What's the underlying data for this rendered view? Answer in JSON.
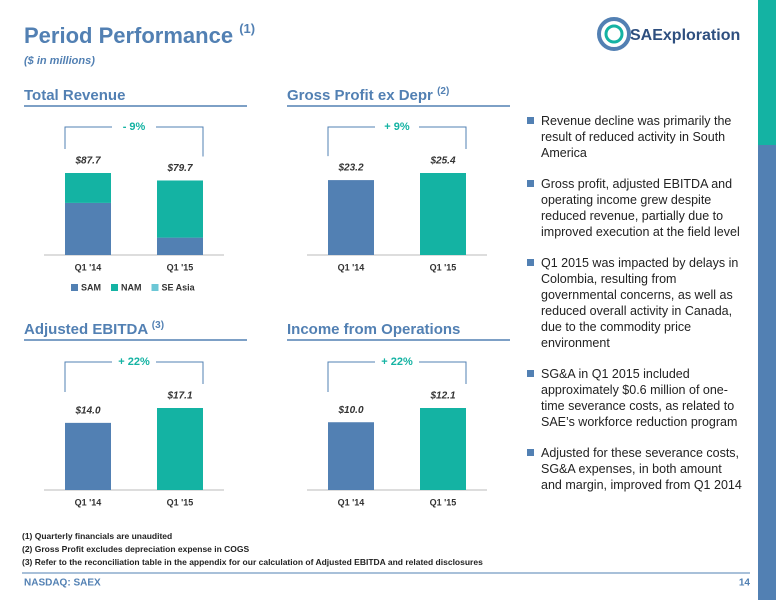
{
  "header": {
    "title": "Period Performance",
    "title_note": "(1)",
    "subtitle": "($ in millions)",
    "logo": "SAExploration"
  },
  "chart_data": [
    {
      "type": "stacked-bar",
      "title": "Total Revenue",
      "categories": [
        "Q1 '14",
        "Q1 '15"
      ],
      "series": [
        {
          "name": "SAM",
          "color": "#5280b3",
          "values": [
            55.7,
            18.6
          ]
        },
        {
          "name": "NAM",
          "color": "#14b3a3",
          "values": [
            32.0,
            61.1
          ]
        },
        {
          "name": "SE Asia",
          "color": "#6cc7d6",
          "values": [
            0,
            0
          ]
        }
      ],
      "totals": [
        87.7,
        79.7
      ],
      "total_labels": [
        "$87.7",
        "$79.7"
      ],
      "annotation": "- 9%"
    },
    {
      "type": "bar",
      "title": "Gross Profit ex Depr",
      "title_note": "(2)",
      "categories": [
        "Q1 '14",
        "Q1 '15"
      ],
      "values": [
        23.2,
        25.4
      ],
      "value_labels": [
        "$23.2",
        "$25.4"
      ],
      "colors": [
        "#5280b3",
        "#14b3a3"
      ],
      "annotation": "+ 9%"
    },
    {
      "type": "bar",
      "title": "Adjusted EBITDA",
      "title_note": "(3)",
      "categories": [
        "Q1 '14",
        "Q1 '15"
      ],
      "values": [
        14.0,
        17.1
      ],
      "value_labels": [
        "$14.0",
        "$17.1"
      ],
      "colors": [
        "#5280b3",
        "#14b3a3"
      ],
      "annotation": "+ 22%"
    },
    {
      "type": "bar",
      "title": "Income from Operations",
      "categories": [
        "Q1 '14",
        "Q1 '15"
      ],
      "values": [
        10.0,
        12.1
      ],
      "value_labels": [
        "$10.0",
        "$12.1"
      ],
      "colors": [
        "#5280b3",
        "#14b3a3"
      ],
      "annotation": "+ 22%"
    }
  ],
  "bullets": [
    "Revenue decline was primarily the result of reduced activity in South America",
    "Gross profit, adjusted EBITDA and operating income grew despite reduced revenue, partially due to improved execution at the field level",
    "Q1 2015 was impacted by delays in Colombia, resulting from governmental concerns, as well as reduced overall activity in Canada, due to the commodity price environment",
    "SG&A in Q1 2015 included approximately $0.6 million of one-time severance costs, as related to SAE’s workforce reduction program",
    "Adjusted for these severance costs, SG&A expenses, in both amount and margin, improved from Q1 2014"
  ],
  "footnotes": [
    "(1) Quarterly financials are unaudited",
    "(2) Gross Profit excludes depreciation expense in COGS",
    "(3) Refer to the reconciliation table in the appendix for our calculation of Adjusted EBITDA and related disclosures"
  ],
  "footer": {
    "ticker": "NASDAQ: SAEX",
    "page": "14"
  }
}
